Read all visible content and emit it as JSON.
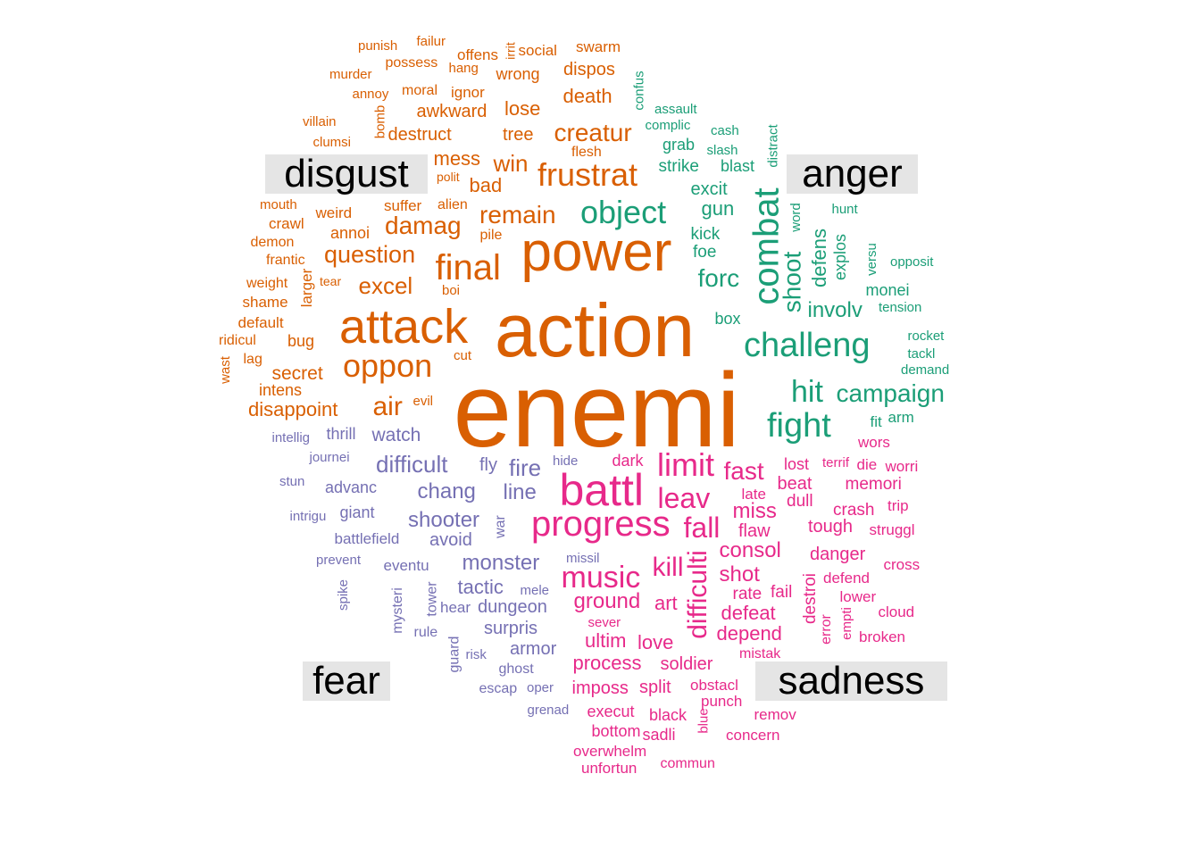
{
  "colors": {
    "disgust": "#d95f02",
    "anger": "#1b9e77",
    "fear": "#7570b3",
    "sadness": "#e7298a",
    "label_bg": "#e5e5e5",
    "label_text": "#000000"
  },
  "labels": {
    "disgust": "disgust",
    "anger": "anger",
    "fear": "fear",
    "sadness": "sadness"
  },
  "words": [
    {
      "t": "enemi",
      "g": "disgust"
    },
    {
      "t": "action",
      "g": "disgust"
    },
    {
      "t": "power",
      "g": "disgust"
    },
    {
      "t": "attack",
      "g": "disgust"
    },
    {
      "t": "final",
      "g": "disgust"
    },
    {
      "t": "oppon",
      "g": "disgust"
    },
    {
      "t": "frustrat",
      "g": "disgust"
    },
    {
      "t": "creatur",
      "g": "disgust"
    },
    {
      "t": "remain",
      "g": "disgust"
    },
    {
      "t": "damag",
      "g": "disgust"
    },
    {
      "t": "question",
      "g": "disgust"
    },
    {
      "t": "excel",
      "g": "disgust"
    },
    {
      "t": "win",
      "g": "disgust"
    },
    {
      "t": "mess",
      "g": "disgust"
    },
    {
      "t": "bad",
      "g": "disgust"
    },
    {
      "t": "death",
      "g": "disgust"
    },
    {
      "t": "lose",
      "g": "disgust"
    },
    {
      "t": "tree",
      "g": "disgust"
    },
    {
      "t": "awkward",
      "g": "disgust"
    },
    {
      "t": "destruct",
      "g": "disgust"
    },
    {
      "t": "dispos",
      "g": "disgust"
    },
    {
      "t": "wrong",
      "g": "disgust"
    },
    {
      "t": "swarm",
      "g": "disgust"
    },
    {
      "t": "social",
      "g": "disgust"
    },
    {
      "t": "irrit",
      "g": "disgust"
    },
    {
      "t": "offens",
      "g": "disgust"
    },
    {
      "t": "failur",
      "g": "disgust"
    },
    {
      "t": "punish",
      "g": "disgust"
    },
    {
      "t": "possess",
      "g": "disgust"
    },
    {
      "t": "hang",
      "g": "disgust"
    },
    {
      "t": "murder",
      "g": "disgust"
    },
    {
      "t": "annoy",
      "g": "disgust"
    },
    {
      "t": "moral",
      "g": "disgust"
    },
    {
      "t": "ignor",
      "g": "disgust"
    },
    {
      "t": "villain",
      "g": "disgust"
    },
    {
      "t": "bomb",
      "g": "disgust"
    },
    {
      "t": "clumsi",
      "g": "disgust"
    },
    {
      "t": "flesh",
      "g": "disgust"
    },
    {
      "t": "polit",
      "g": "disgust"
    },
    {
      "t": "suffer",
      "g": "disgust"
    },
    {
      "t": "alien",
      "g": "disgust"
    },
    {
      "t": "mouth",
      "g": "disgust"
    },
    {
      "t": "weird",
      "g": "disgust"
    },
    {
      "t": "crawl",
      "g": "disgust"
    },
    {
      "t": "annoi",
      "g": "disgust"
    },
    {
      "t": "pile",
      "g": "disgust"
    },
    {
      "t": "demon",
      "g": "disgust"
    },
    {
      "t": "frantic",
      "g": "disgust"
    },
    {
      "t": "larger",
      "g": "disgust"
    },
    {
      "t": "weight",
      "g": "disgust"
    },
    {
      "t": "tear",
      "g": "disgust"
    },
    {
      "t": "boi",
      "g": "disgust"
    },
    {
      "t": "shame",
      "g": "disgust"
    },
    {
      "t": "default",
      "g": "disgust"
    },
    {
      "t": "ridicul",
      "g": "disgust"
    },
    {
      "t": "bug",
      "g": "disgust"
    },
    {
      "t": "wast",
      "g": "disgust"
    },
    {
      "t": "lag",
      "g": "disgust"
    },
    {
      "t": "secret",
      "g": "disgust"
    },
    {
      "t": "cut",
      "g": "disgust"
    },
    {
      "t": "intens",
      "g": "disgust"
    },
    {
      "t": "air",
      "g": "disgust"
    },
    {
      "t": "evil",
      "g": "disgust"
    },
    {
      "t": "disappoint",
      "g": "disgust"
    },
    {
      "t": "object",
      "g": "anger"
    },
    {
      "t": "combat",
      "g": "anger"
    },
    {
      "t": "challeng",
      "g": "anger"
    },
    {
      "t": "fight",
      "g": "anger"
    },
    {
      "t": "hit",
      "g": "anger"
    },
    {
      "t": "campaign",
      "g": "anger"
    },
    {
      "t": "shoot",
      "g": "anger"
    },
    {
      "t": "involv",
      "g": "anger"
    },
    {
      "t": "forc",
      "g": "anger"
    },
    {
      "t": "gun",
      "g": "anger"
    },
    {
      "t": "excit",
      "g": "anger"
    },
    {
      "t": "strike",
      "g": "anger"
    },
    {
      "t": "grab",
      "g": "anger"
    },
    {
      "t": "blast",
      "g": "anger"
    },
    {
      "t": "kick",
      "g": "anger"
    },
    {
      "t": "foe",
      "g": "anger"
    },
    {
      "t": "defens",
      "g": "anger"
    },
    {
      "t": "explos",
      "g": "anger"
    },
    {
      "t": "word",
      "g": "anger"
    },
    {
      "t": "distract",
      "g": "anger"
    },
    {
      "t": "hunt",
      "g": "anger"
    },
    {
      "t": "versu",
      "g": "anger"
    },
    {
      "t": "opposit",
      "g": "anger"
    },
    {
      "t": "monei",
      "g": "anger"
    },
    {
      "t": "tension",
      "g": "anger"
    },
    {
      "t": "rocket",
      "g": "anger"
    },
    {
      "t": "tackl",
      "g": "anger"
    },
    {
      "t": "demand",
      "g": "anger"
    },
    {
      "t": "box",
      "g": "anger"
    },
    {
      "t": "fit",
      "g": "anger"
    },
    {
      "t": "arm",
      "g": "anger"
    },
    {
      "t": "confus",
      "g": "anger"
    },
    {
      "t": "assault",
      "g": "anger"
    },
    {
      "t": "complic",
      "g": "anger"
    },
    {
      "t": "cash",
      "g": "anger"
    },
    {
      "t": "slash",
      "g": "anger"
    },
    {
      "t": "battl",
      "g": "sadness"
    },
    {
      "t": "progress",
      "g": "sadness"
    },
    {
      "t": "limit",
      "g": "sadness"
    },
    {
      "t": "leav",
      "g": "sadness"
    },
    {
      "t": "fall",
      "g": "sadness"
    },
    {
      "t": "difficulti",
      "g": "sadness"
    },
    {
      "t": "music",
      "g": "sadness"
    },
    {
      "t": "kill",
      "g": "sadness"
    },
    {
      "t": "fast",
      "g": "sadness"
    },
    {
      "t": "miss",
      "g": "sadness"
    },
    {
      "t": "consol",
      "g": "sadness"
    },
    {
      "t": "shot",
      "g": "sadness"
    },
    {
      "t": "ground",
      "g": "sadness"
    },
    {
      "t": "defeat",
      "g": "sadness"
    },
    {
      "t": "depend",
      "g": "sadness"
    },
    {
      "t": "ultim",
      "g": "sadness"
    },
    {
      "t": "love",
      "g": "sadness"
    },
    {
      "t": "process",
      "g": "sadness"
    },
    {
      "t": "soldier",
      "g": "sadness"
    },
    {
      "t": "imposs",
      "g": "sadness"
    },
    {
      "t": "split",
      "g": "sadness"
    },
    {
      "t": "art",
      "g": "sadness"
    },
    {
      "t": "rate",
      "g": "sadness"
    },
    {
      "t": "fail",
      "g": "sadness"
    },
    {
      "t": "flaw",
      "g": "sadness"
    },
    {
      "t": "late",
      "g": "sadness"
    },
    {
      "t": "dull",
      "g": "sadness"
    },
    {
      "t": "beat",
      "g": "sadness"
    },
    {
      "t": "lost",
      "g": "sadness"
    },
    {
      "t": "terrif",
      "g": "sadness"
    },
    {
      "t": "die",
      "g": "sadness"
    },
    {
      "t": "worri",
      "g": "sadness"
    },
    {
      "t": "memori",
      "g": "sadness"
    },
    {
      "t": "crash",
      "g": "sadness"
    },
    {
      "t": "trip",
      "g": "sadness"
    },
    {
      "t": "tough",
      "g": "sadness"
    },
    {
      "t": "struggl",
      "g": "sadness"
    },
    {
      "t": "danger",
      "g": "sadness"
    },
    {
      "t": "cross",
      "g": "sadness"
    },
    {
      "t": "destroi",
      "g": "sadness"
    },
    {
      "t": "defend",
      "g": "sadness"
    },
    {
      "t": "lower",
      "g": "sadness"
    },
    {
      "t": "error",
      "g": "sadness"
    },
    {
      "t": "empti",
      "g": "sadness"
    },
    {
      "t": "cloud",
      "g": "sadness"
    },
    {
      "t": "broken",
      "g": "sadness"
    },
    {
      "t": "mistak",
      "g": "sadness"
    },
    {
      "t": "obstacl",
      "g": "sadness"
    },
    {
      "t": "punch",
      "g": "sadness"
    },
    {
      "t": "remov",
      "g": "sadness"
    },
    {
      "t": "blue",
      "g": "sadness"
    },
    {
      "t": "concern",
      "g": "sadness"
    },
    {
      "t": "execut",
      "g": "sadness"
    },
    {
      "t": "black",
      "g": "sadness"
    },
    {
      "t": "bottom",
      "g": "sadness"
    },
    {
      "t": "sadli",
      "g": "sadness"
    },
    {
      "t": "overwhelm",
      "g": "sadness"
    },
    {
      "t": "commun",
      "g": "sadness"
    },
    {
      "t": "unfortun",
      "g": "sadness"
    },
    {
      "t": "dark",
      "g": "sadness"
    },
    {
      "t": "sever",
      "g": "sadness"
    },
    {
      "t": "wors",
      "g": "sadness"
    },
    {
      "t": "difficult",
      "g": "fear"
    },
    {
      "t": "fire",
      "g": "fear"
    },
    {
      "t": "line",
      "g": "fear"
    },
    {
      "t": "chang",
      "g": "fear"
    },
    {
      "t": "shooter",
      "g": "fear"
    },
    {
      "t": "avoid",
      "g": "fear"
    },
    {
      "t": "monster",
      "g": "fear"
    },
    {
      "t": "tactic",
      "g": "fear"
    },
    {
      "t": "dungeon",
      "g": "fear"
    },
    {
      "t": "surpris",
      "g": "fear"
    },
    {
      "t": "armor",
      "g": "fear"
    },
    {
      "t": "watch",
      "g": "fear"
    },
    {
      "t": "thrill",
      "g": "fear"
    },
    {
      "t": "fly",
      "g": "fear"
    },
    {
      "t": "hide",
      "g": "fear"
    },
    {
      "t": "advanc",
      "g": "fear"
    },
    {
      "t": "giant",
      "g": "fear"
    },
    {
      "t": "battlefield",
      "g": "fear"
    },
    {
      "t": "eventu",
      "g": "fear"
    },
    {
      "t": "prevent",
      "g": "fear"
    },
    {
      "t": "war",
      "g": "fear"
    },
    {
      "t": "missil",
      "g": "fear"
    },
    {
      "t": "mele",
      "g": "fear"
    },
    {
      "t": "tower",
      "g": "fear"
    },
    {
      "t": "hear",
      "g": "fear"
    },
    {
      "t": "rule",
      "g": "fear"
    },
    {
      "t": "guard",
      "g": "fear"
    },
    {
      "t": "risk",
      "g": "fear"
    },
    {
      "t": "ghost",
      "g": "fear"
    },
    {
      "t": "escap",
      "g": "fear"
    },
    {
      "t": "oper",
      "g": "fear"
    },
    {
      "t": "grenad",
      "g": "fear"
    },
    {
      "t": "intellig",
      "g": "fear"
    },
    {
      "t": "journei",
      "g": "fear"
    },
    {
      "t": "stun",
      "g": "fear"
    },
    {
      "t": "intrigu",
      "g": "fear"
    },
    {
      "t": "spike",
      "g": "fear"
    },
    {
      "t": "mysteri",
      "g": "fear"
    }
  ]
}
